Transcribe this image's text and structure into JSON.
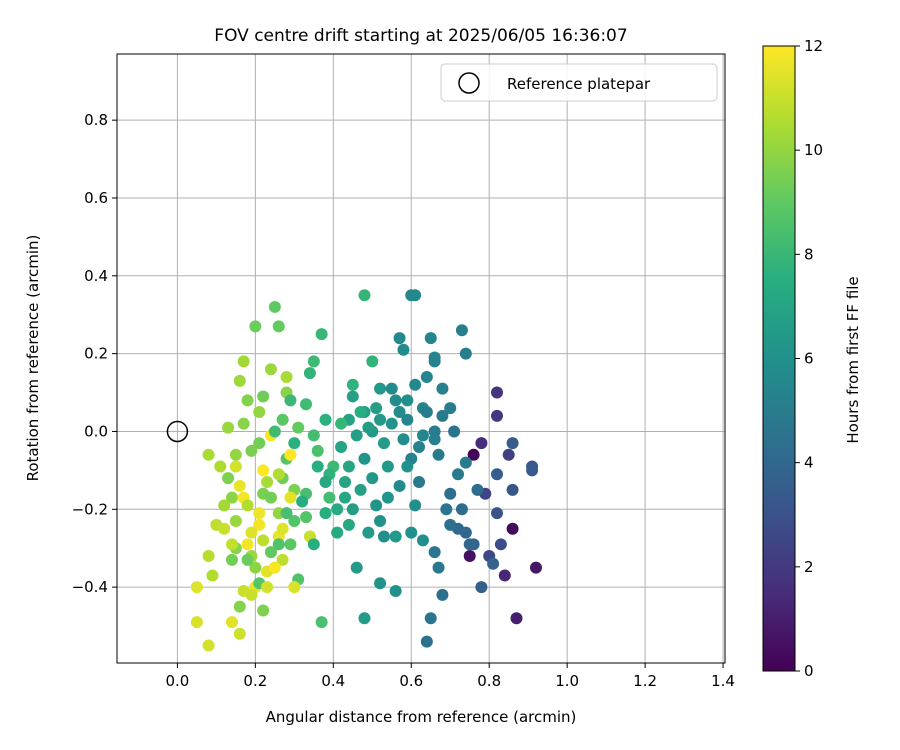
{
  "chart_data": {
    "type": "scatter",
    "title": "FOV centre drift starting at 2025/06/05 16:36:07",
    "xlabel": "Angular distance from reference (arcmin)",
    "ylabel": "Rotation from reference (arcmin)",
    "xlim": [
      -0.155,
      1.405
    ],
    "ylim": [
      -0.595,
      0.97
    ],
    "xticks": [
      0.0,
      0.2,
      0.4,
      0.6,
      0.8,
      1.0,
      1.2,
      1.4
    ],
    "yticks": [
      -0.4,
      -0.2,
      0.0,
      0.2,
      0.4,
      0.6,
      0.8
    ],
    "grid": true,
    "legend": {
      "position": "top-right",
      "entries": [
        "Reference platepar"
      ]
    },
    "reference_point": {
      "x": 0.0,
      "y": 0.0,
      "label": "Reference platepar"
    },
    "colorbar": {
      "label": "Hours from first FF file",
      "colormap": "viridis",
      "range": [
        0,
        12
      ],
      "ticks": [
        0,
        2,
        4,
        6,
        8,
        10,
        12
      ]
    },
    "points": [
      {
        "x": 0.76,
        "y": -0.06,
        "h": 0.1
      },
      {
        "x": 0.86,
        "y": -0.25,
        "h": 0.3
      },
      {
        "x": 0.75,
        "y": -0.32,
        "h": 0.5
      },
      {
        "x": 0.92,
        "y": -0.35,
        "h": 0.7
      },
      {
        "x": 0.87,
        "y": -0.48,
        "h": 1.0
      },
      {
        "x": 0.84,
        "y": -0.37,
        "h": 1.3
      },
      {
        "x": 0.78,
        "y": -0.03,
        "h": 1.5
      },
      {
        "x": 0.82,
        "y": 0.1,
        "h": 1.8
      },
      {
        "x": 0.82,
        "y": 0.04,
        "h": 2.0
      },
      {
        "x": 0.85,
        "y": -0.06,
        "h": 2.2
      },
      {
        "x": 0.79,
        "y": -0.16,
        "h": 2.4
      },
      {
        "x": 0.8,
        "y": -0.32,
        "h": 2.6
      },
      {
        "x": 0.83,
        "y": -0.29,
        "h": 2.8
      },
      {
        "x": 0.82,
        "y": -0.21,
        "h": 3.0
      },
      {
        "x": 0.86,
        "y": -0.15,
        "h": 3.2
      },
      {
        "x": 0.91,
        "y": -0.09,
        "h": 3.3
      },
      {
        "x": 0.91,
        "y": -0.1,
        "h": 3.4
      },
      {
        "x": 0.86,
        "y": -0.03,
        "h": 3.5
      },
      {
        "x": 0.82,
        "y": -0.11,
        "h": 3.6
      },
      {
        "x": 0.78,
        "y": -0.4,
        "h": 3.7
      },
      {
        "x": 0.81,
        "y": -0.34,
        "h": 3.8
      },
      {
        "x": 0.76,
        "y": -0.29,
        "h": 3.9
      },
      {
        "x": 0.74,
        "y": -0.26,
        "h": 4.0
      },
      {
        "x": 0.72,
        "y": -0.25,
        "h": 4.1
      },
      {
        "x": 0.77,
        "y": -0.15,
        "h": 4.2
      },
      {
        "x": 0.7,
        "y": -0.16,
        "h": 4.3
      },
      {
        "x": 0.68,
        "y": -0.42,
        "h": 4.4
      },
      {
        "x": 0.64,
        "y": -0.54,
        "h": 4.5
      },
      {
        "x": 0.65,
        "y": -0.48,
        "h": 4.6
      },
      {
        "x": 0.66,
        "y": -0.31,
        "h": 4.7
      },
      {
        "x": 0.67,
        "y": -0.35,
        "h": 4.8
      },
      {
        "x": 0.72,
        "y": -0.11,
        "h": 4.9
      },
      {
        "x": 0.74,
        "y": -0.08,
        "h": 5.0
      },
      {
        "x": 0.7,
        "y": 0.06,
        "h": 5.0
      },
      {
        "x": 0.73,
        "y": 0.26,
        "h": 5.1
      },
      {
        "x": 0.74,
        "y": 0.2,
        "h": 5.1
      },
      {
        "x": 0.68,
        "y": 0.11,
        "h": 5.2
      },
      {
        "x": 0.66,
        "y": -0.02,
        "h": 5.2
      },
      {
        "x": 0.6,
        "y": -0.07,
        "h": 5.3
      },
      {
        "x": 0.63,
        "y": 0.06,
        "h": 5.3
      },
      {
        "x": 0.66,
        "y": 0.19,
        "h": 5.4
      },
      {
        "x": 0.65,
        "y": 0.24,
        "h": 5.4
      },
      {
        "x": 0.64,
        "y": 0.14,
        "h": 5.5
      },
      {
        "x": 0.6,
        "y": 0.35,
        "h": 5.5
      },
      {
        "x": 0.61,
        "y": 0.35,
        "h": 5.6
      },
      {
        "x": 0.57,
        "y": 0.24,
        "h": 5.6
      },
      {
        "x": 0.58,
        "y": 0.21,
        "h": 5.7
      },
      {
        "x": 0.55,
        "y": 0.11,
        "h": 5.7
      },
      {
        "x": 0.56,
        "y": 0.08,
        "h": 5.8
      },
      {
        "x": 0.58,
        "y": -0.02,
        "h": 5.8
      },
      {
        "x": 0.61,
        "y": -0.19,
        "h": 5.9
      },
      {
        "x": 0.63,
        "y": -0.28,
        "h": 5.9
      },
      {
        "x": 0.6,
        "y": -0.26,
        "h": 6.0
      },
      {
        "x": 0.56,
        "y": -0.41,
        "h": 6.0
      },
      {
        "x": 0.52,
        "y": -0.39,
        "h": 6.1
      },
      {
        "x": 0.52,
        "y": -0.23,
        "h": 6.1
      },
      {
        "x": 0.51,
        "y": -0.19,
        "h": 6.2
      },
      {
        "x": 0.48,
        "y": -0.07,
        "h": 6.2
      },
      {
        "x": 0.5,
        "y": 0.0,
        "h": 6.3
      },
      {
        "x": 0.52,
        "y": 0.03,
        "h": 6.3
      },
      {
        "x": 0.54,
        "y": -0.09,
        "h": 6.4
      },
      {
        "x": 0.49,
        "y": -0.26,
        "h": 6.4
      },
      {
        "x": 0.46,
        "y": -0.35,
        "h": 6.5
      },
      {
        "x": 0.48,
        "y": -0.48,
        "h": 6.5
      },
      {
        "x": 0.45,
        "y": -0.2,
        "h": 6.6
      },
      {
        "x": 0.46,
        "y": -0.01,
        "h": 6.7
      },
      {
        "x": 0.48,
        "y": 0.05,
        "h": 6.8
      },
      {
        "x": 0.44,
        "y": 0.03,
        "h": 6.9
      },
      {
        "x": 0.42,
        "y": -0.04,
        "h": 7.0
      },
      {
        "x": 0.43,
        "y": -0.17,
        "h": 7.1
      },
      {
        "x": 0.44,
        "y": -0.24,
        "h": 7.2
      },
      {
        "x": 0.41,
        "y": -0.26,
        "h": 7.3
      },
      {
        "x": 0.38,
        "y": -0.21,
        "h": 7.4
      },
      {
        "x": 0.36,
        "y": -0.09,
        "h": 7.5
      },
      {
        "x": 0.38,
        "y": 0.03,
        "h": 7.6
      },
      {
        "x": 0.45,
        "y": 0.12,
        "h": 7.7
      },
      {
        "x": 0.5,
        "y": 0.18,
        "h": 7.8
      },
      {
        "x": 0.48,
        "y": 0.35,
        "h": 7.9
      },
      {
        "x": 0.37,
        "y": 0.25,
        "h": 8.0
      },
      {
        "x": 0.35,
        "y": 0.18,
        "h": 8.1
      },
      {
        "x": 0.33,
        "y": 0.07,
        "h": 8.2
      },
      {
        "x": 0.35,
        "y": -0.01,
        "h": 8.3
      },
      {
        "x": 0.33,
        "y": -0.16,
        "h": 8.4
      },
      {
        "x": 0.37,
        "y": -0.49,
        "h": 8.5
      },
      {
        "x": 0.31,
        "y": -0.38,
        "h": 8.6
      },
      {
        "x": 0.3,
        "y": -0.23,
        "h": 8.7
      },
      {
        "x": 0.28,
        "y": -0.07,
        "h": 8.8
      },
      {
        "x": 0.27,
        "y": 0.03,
        "h": 8.9
      },
      {
        "x": 0.25,
        "y": 0.32,
        "h": 9.0
      },
      {
        "x": 0.26,
        "y": 0.27,
        "h": 9.1
      },
      {
        "x": 0.2,
        "y": 0.27,
        "h": 9.2
      },
      {
        "x": 0.22,
        "y": 0.09,
        "h": 9.3
      },
      {
        "x": 0.21,
        "y": -0.03,
        "h": 9.4
      },
      {
        "x": 0.22,
        "y": -0.16,
        "h": 9.5
      },
      {
        "x": 0.22,
        "y": -0.46,
        "h": 9.6
      },
      {
        "x": 0.16,
        "y": -0.45,
        "h": 9.7
      },
      {
        "x": 0.15,
        "y": -0.3,
        "h": 9.8
      },
      {
        "x": 0.14,
        "y": -0.17,
        "h": 9.9
      },
      {
        "x": 0.15,
        "y": -0.06,
        "h": 10.0
      },
      {
        "x": 0.13,
        "y": 0.01,
        "h": 10.1
      },
      {
        "x": 0.16,
        "y": 0.13,
        "h": 10.2
      },
      {
        "x": 0.17,
        "y": 0.18,
        "h": 10.3
      },
      {
        "x": 0.08,
        "y": -0.06,
        "h": 10.4
      },
      {
        "x": 0.11,
        "y": -0.09,
        "h": 10.5
      },
      {
        "x": 0.09,
        "y": -0.37,
        "h": 10.6
      },
      {
        "x": 0.08,
        "y": -0.32,
        "h": 10.7
      },
      {
        "x": 0.1,
        "y": -0.24,
        "h": 10.8
      },
      {
        "x": 0.14,
        "y": -0.29,
        "h": 10.9
      },
      {
        "x": 0.17,
        "y": -0.41,
        "h": 11.0
      },
      {
        "x": 0.16,
        "y": -0.52,
        "h": 11.1
      },
      {
        "x": 0.08,
        "y": -0.55,
        "h": 11.2
      },
      {
        "x": 0.05,
        "y": -0.49,
        "h": 11.3
      },
      {
        "x": 0.05,
        "y": -0.4,
        "h": 11.4
      },
      {
        "x": 0.14,
        "y": -0.49,
        "h": 11.5
      },
      {
        "x": 0.2,
        "y": -0.4,
        "h": 11.6
      },
      {
        "x": 0.24,
        "y": -0.31,
        "h": 11.7
      },
      {
        "x": 0.21,
        "y": -0.24,
        "h": 11.8
      },
      {
        "x": 0.24,
        "y": -0.01,
        "h": 11.9
      },
      {
        "x": 0.29,
        "y": -0.06,
        "h": 12.0
      },
      {
        "x": 0.22,
        "y": -0.1,
        "h": 12.0
      },
      {
        "x": 0.3,
        "y": -0.4,
        "h": 11.3
      },
      {
        "x": 0.23,
        "y": -0.36,
        "h": 11.5
      },
      {
        "x": 0.19,
        "y": -0.26,
        "h": 11.4
      },
      {
        "x": 0.26,
        "y": -0.27,
        "h": 11.6
      },
      {
        "x": 0.17,
        "y": -0.17,
        "h": 11.8
      },
      {
        "x": 0.15,
        "y": -0.09,
        "h": 11.2
      },
      {
        "x": 0.34,
        "y": -0.27,
        "h": 11.0
      },
      {
        "x": 0.27,
        "y": -0.33,
        "h": 10.8
      },
      {
        "x": 0.18,
        "y": -0.19,
        "h": 10.6
      },
      {
        "x": 0.23,
        "y": -0.13,
        "h": 10.4
      },
      {
        "x": 0.19,
        "y": -0.32,
        "h": 10.2
      },
      {
        "x": 0.26,
        "y": -0.21,
        "h": 10.0
      },
      {
        "x": 0.12,
        "y": -0.19,
        "h": 10.3
      },
      {
        "x": 0.15,
        "y": -0.23,
        "h": 10.1
      },
      {
        "x": 0.2,
        "y": -0.35,
        "h": 9.9
      },
      {
        "x": 0.28,
        "y": 0.1,
        "h": 9.8
      },
      {
        "x": 0.3,
        "y": -0.15,
        "h": 9.6
      },
      {
        "x": 0.24,
        "y": -0.17,
        "h": 9.4
      },
      {
        "x": 0.18,
        "y": 0.08,
        "h": 9.7
      },
      {
        "x": 0.19,
        "y": -0.05,
        "h": 9.5
      },
      {
        "x": 0.27,
        "y": -0.12,
        "h": 9.3
      },
      {
        "x": 0.31,
        "y": 0.01,
        "h": 9.1
      },
      {
        "x": 0.29,
        "y": -0.29,
        "h": 8.9
      },
      {
        "x": 0.33,
        "y": -0.22,
        "h": 8.7
      },
      {
        "x": 0.36,
        "y": -0.05,
        "h": 8.5
      },
      {
        "x": 0.39,
        "y": -0.17,
        "h": 8.3
      },
      {
        "x": 0.4,
        "y": -0.09,
        "h": 8.1
      },
      {
        "x": 0.42,
        "y": 0.02,
        "h": 7.9
      },
      {
        "x": 0.39,
        "y": -0.11,
        "h": 7.7
      },
      {
        "x": 0.35,
        "y": -0.29,
        "h": 7.5
      },
      {
        "x": 0.41,
        "y": -0.2,
        "h": 7.3
      },
      {
        "x": 0.44,
        "y": -0.09,
        "h": 7.1
      },
      {
        "x": 0.47,
        "y": -0.15,
        "h": 6.9
      },
      {
        "x": 0.51,
        "y": 0.06,
        "h": 6.7
      },
      {
        "x": 0.53,
        "y": -0.03,
        "h": 6.5
      },
      {
        "x": 0.5,
        "y": -0.12,
        "h": 6.3
      },
      {
        "x": 0.55,
        "y": 0.02,
        "h": 6.1
      },
      {
        "x": 0.53,
        "y": -0.27,
        "h": 5.9
      },
      {
        "x": 0.57,
        "y": -0.14,
        "h": 5.7
      },
      {
        "x": 0.59,
        "y": 0.03,
        "h": 5.5
      },
      {
        "x": 0.62,
        "y": -0.04,
        "h": 5.3
      },
      {
        "x": 0.64,
        "y": 0.05,
        "h": 5.1
      },
      {
        "x": 0.67,
        "y": -0.06,
        "h": 4.9
      },
      {
        "x": 0.69,
        "y": -0.2,
        "h": 4.7
      },
      {
        "x": 0.62,
        "y": -0.13,
        "h": 4.8
      },
      {
        "x": 0.66,
        "y": 0.0,
        "h": 5.0
      },
      {
        "x": 0.71,
        "y": 0.0,
        "h": 4.6
      },
      {
        "x": 0.7,
        "y": -0.24,
        "h": 4.4
      },
      {
        "x": 0.73,
        "y": -0.2,
        "h": 4.2
      },
      {
        "x": 0.75,
        "y": -0.29,
        "h": 4.0
      },
      {
        "x": 0.61,
        "y": 0.12,
        "h": 5.6
      },
      {
        "x": 0.57,
        "y": 0.05,
        "h": 5.8
      },
      {
        "x": 0.63,
        "y": -0.01,
        "h": 5.4
      },
      {
        "x": 0.59,
        "y": -0.09,
        "h": 6.0
      },
      {
        "x": 0.54,
        "y": -0.17,
        "h": 6.2
      },
      {
        "x": 0.56,
        "y": -0.27,
        "h": 6.4
      },
      {
        "x": 0.49,
        "y": 0.01,
        "h": 6.6
      },
      {
        "x": 0.45,
        "y": 0.09,
        "h": 6.8
      },
      {
        "x": 0.43,
        "y": -0.13,
        "h": 7.0
      },
      {
        "x": 0.38,
        "y": -0.13,
        "h": 7.2
      },
      {
        "x": 0.32,
        "y": -0.18,
        "h": 7.4
      },
      {
        "x": 0.3,
        "y": -0.03,
        "h": 7.6
      },
      {
        "x": 0.34,
        "y": 0.15,
        "h": 7.8
      },
      {
        "x": 0.29,
        "y": 0.08,
        "h": 8.0
      },
      {
        "x": 0.25,
        "y": 0.0,
        "h": 8.2
      },
      {
        "x": 0.28,
        "y": -0.21,
        "h": 8.4
      },
      {
        "x": 0.26,
        "y": -0.29,
        "h": 8.6
      },
      {
        "x": 0.21,
        "y": -0.39,
        "h": 8.8
      },
      {
        "x": 0.24,
        "y": -0.31,
        "h": 9.0
      },
      {
        "x": 0.18,
        "y": -0.33,
        "h": 9.2
      },
      {
        "x": 0.14,
        "y": -0.33,
        "h": 9.4
      },
      {
        "x": 0.13,
        "y": -0.12,
        "h": 9.6
      },
      {
        "x": 0.17,
        "y": 0.02,
        "h": 9.8
      },
      {
        "x": 0.21,
        "y": 0.05,
        "h": 10.0
      },
      {
        "x": 0.24,
        "y": 0.16,
        "h": 10.2
      },
      {
        "x": 0.28,
        "y": 0.14,
        "h": 10.4
      },
      {
        "x": 0.26,
        "y": -0.11,
        "h": 10.6
      },
      {
        "x": 0.22,
        "y": -0.28,
        "h": 10.8
      },
      {
        "x": 0.19,
        "y": -0.42,
        "h": 11.0
      },
      {
        "x": 0.23,
        "y": -0.4,
        "h": 11.2
      },
      {
        "x": 0.27,
        "y": -0.25,
        "h": 11.4
      },
      {
        "x": 0.16,
        "y": -0.14,
        "h": 11.6
      },
      {
        "x": 0.18,
        "y": -0.29,
        "h": 11.8
      },
      {
        "x": 0.25,
        "y": -0.35,
        "h": 11.9
      },
      {
        "x": 0.21,
        "y": -0.21,
        "h": 11.7
      },
      {
        "x": 0.29,
        "y": -0.17,
        "h": 11.5
      },
      {
        "x": 0.12,
        "y": -0.25,
        "h": 11.0
      },
      {
        "x": 0.66,
        "y": 0.18,
        "h": 5.3
      },
      {
        "x": 0.68,
        "y": 0.04,
        "h": 4.9
      },
      {
        "x": 0.59,
        "y": 0.08,
        "h": 5.9
      },
      {
        "x": 0.52,
        "y": 0.11,
        "h": 6.3
      },
      {
        "x": 0.47,
        "y": 0.05,
        "h": 7.5
      }
    ]
  }
}
